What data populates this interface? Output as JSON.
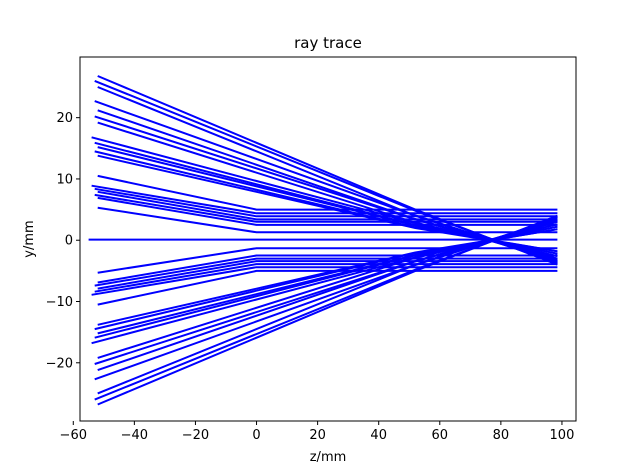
{
  "chart_data": {
    "type": "line",
    "title": "ray trace",
    "xlabel": "z/mm",
    "ylabel": "y/mm",
    "xlim": [
      -57.8,
      104.6
    ],
    "ylim": [
      -29.5,
      29.9
    ],
    "xticks": [
      -60,
      -40,
      -20,
      0,
      20,
      40,
      60,
      80,
      100
    ],
    "xtick_labels": [
      "−60",
      "−40",
      "−20",
      "0",
      "20",
      "40",
      "60",
      "80",
      "100"
    ],
    "yticks": [
      -20,
      -10,
      0,
      10,
      20
    ],
    "ytick_labels": [
      "−20",
      "−10",
      "0",
      "10",
      "20"
    ],
    "grid": false,
    "line_color": "#0000ff",
    "lens_z": 0,
    "end_z": 98.5,
    "series": [
      {
        "values": [
          [
            -52,
            26.8
          ],
          [
            52,
            5.0
          ],
          [
            98.5,
            -4.0
          ]
        ]
      },
      {
        "values": [
          [
            -53,
            26.0
          ],
          [
            53,
            4.6
          ],
          [
            98.5,
            -3.8
          ]
        ]
      },
      {
        "values": [
          [
            -52,
            25.0
          ],
          [
            51,
            4.2
          ],
          [
            98.5,
            -3.4
          ]
        ]
      },
      {
        "values": [
          [
            -53,
            22.7
          ],
          [
            52,
            4.0
          ],
          [
            98.5,
            -3.6
          ]
        ]
      },
      {
        "values": [
          [
            -52,
            21.2
          ],
          [
            51,
            3.6
          ],
          [
            98.5,
            -3.0
          ]
        ]
      },
      {
        "values": [
          [
            -53,
            20.2
          ],
          [
            52,
            3.4
          ],
          [
            98.5,
            -3.2
          ]
        ]
      },
      {
        "values": [
          [
            -52,
            19.2
          ],
          [
            51,
            3.0
          ],
          [
            98.5,
            -2.6
          ]
        ]
      },
      {
        "values": [
          [
            -54,
            16.8
          ],
          [
            52,
            2.8
          ],
          [
            98.5,
            -2.6
          ]
        ]
      },
      {
        "values": [
          [
            -53,
            15.9
          ],
          [
            51,
            2.6
          ],
          [
            98.5,
            -2.2
          ]
        ]
      },
      {
        "values": [
          [
            -52,
            15.2
          ],
          [
            52,
            2.4
          ],
          [
            98.5,
            -2.2
          ]
        ]
      },
      {
        "values": [
          [
            -53,
            14.5
          ],
          [
            51,
            2.2
          ],
          [
            98.5,
            -1.8
          ]
        ]
      },
      {
        "values": [
          [
            -52,
            13.8
          ],
          [
            52,
            2.0
          ],
          [
            98.5,
            -1.8
          ]
        ]
      },
      {
        "values": [
          [
            -52,
            10.5
          ],
          [
            0,
            5.0
          ],
          [
            98.5,
            5.0
          ]
        ]
      },
      {
        "values": [
          [
            -54,
            8.9
          ],
          [
            0,
            4.4
          ],
          [
            98.5,
            4.4
          ]
        ]
      },
      {
        "values": [
          [
            -53,
            8.4
          ],
          [
            0,
            3.9
          ],
          [
            98.5,
            3.9
          ]
        ]
      },
      {
        "values": [
          [
            -52,
            7.9
          ],
          [
            0,
            3.4
          ],
          [
            98.5,
            3.4
          ]
        ]
      },
      {
        "values": [
          [
            -53,
            7.4
          ],
          [
            0,
            3.0
          ],
          [
            98.5,
            3.0
          ]
        ]
      },
      {
        "values": [
          [
            -52,
            6.9
          ],
          [
            0,
            2.5
          ],
          [
            98.5,
            2.5
          ]
        ]
      },
      {
        "values": [
          [
            -52,
            5.3
          ],
          [
            0,
            1.3
          ],
          [
            98.5,
            1.3
          ]
        ]
      },
      {
        "values": [
          [
            -55,
            0.1
          ],
          [
            0,
            0.1
          ],
          [
            98.5,
            0.1
          ]
        ]
      },
      {
        "values": [
          [
            -52,
            -5.3
          ],
          [
            0,
            -1.3
          ],
          [
            98.5,
            -1.3
          ]
        ]
      },
      {
        "values": [
          [
            -52,
            -6.9
          ],
          [
            0,
            -2.5
          ],
          [
            98.5,
            -2.5
          ]
        ]
      },
      {
        "values": [
          [
            -53,
            -7.4
          ],
          [
            0,
            -3.0
          ],
          [
            98.5,
            -3.0
          ]
        ]
      },
      {
        "values": [
          [
            -52,
            -7.9
          ],
          [
            0,
            -3.4
          ],
          [
            98.5,
            -3.4
          ]
        ]
      },
      {
        "values": [
          [
            -53,
            -8.4
          ],
          [
            0,
            -3.9
          ],
          [
            98.5,
            -3.9
          ]
        ]
      },
      {
        "values": [
          [
            -54,
            -8.9
          ],
          [
            0,
            -4.4
          ],
          [
            98.5,
            -4.4
          ]
        ]
      },
      {
        "values": [
          [
            -52,
            -10.5
          ],
          [
            0,
            -5.0
          ],
          [
            98.5,
            -5.0
          ]
        ]
      },
      {
        "values": [
          [
            -52,
            -13.8
          ],
          [
            52,
            -2.0
          ],
          [
            98.5,
            1.8
          ]
        ]
      },
      {
        "values": [
          [
            -53,
            -14.5
          ],
          [
            51,
            -2.2
          ],
          [
            98.5,
            1.8
          ]
        ]
      },
      {
        "values": [
          [
            -52,
            -15.2
          ],
          [
            52,
            -2.4
          ],
          [
            98.5,
            2.2
          ]
        ]
      },
      {
        "values": [
          [
            -53,
            -15.9
          ],
          [
            51,
            -2.6
          ],
          [
            98.5,
            2.2
          ]
        ]
      },
      {
        "values": [
          [
            -54,
            -16.8
          ],
          [
            52,
            -2.8
          ],
          [
            98.5,
            2.6
          ]
        ]
      },
      {
        "values": [
          [
            -52,
            -19.2
          ],
          [
            51,
            -3.0
          ],
          [
            98.5,
            2.6
          ]
        ]
      },
      {
        "values": [
          [
            -53,
            -20.2
          ],
          [
            52,
            -3.4
          ],
          [
            98.5,
            3.2
          ]
        ]
      },
      {
        "values": [
          [
            -52,
            -21.2
          ],
          [
            51,
            -3.6
          ],
          [
            98.5,
            3.0
          ]
        ]
      },
      {
        "values": [
          [
            -53,
            -22.7
          ],
          [
            52,
            -4.0
          ],
          [
            98.5,
            3.6
          ]
        ]
      },
      {
        "values": [
          [
            -52,
            -25.0
          ],
          [
            51,
            -4.2
          ],
          [
            98.5,
            3.4
          ]
        ]
      },
      {
        "values": [
          [
            -53,
            -26.0
          ],
          [
            53,
            -4.6
          ],
          [
            98.5,
            3.8
          ]
        ]
      },
      {
        "values": [
          [
            -52,
            -26.8
          ],
          [
            52,
            -5.0
          ],
          [
            98.5,
            4.0
          ]
        ]
      }
    ]
  }
}
